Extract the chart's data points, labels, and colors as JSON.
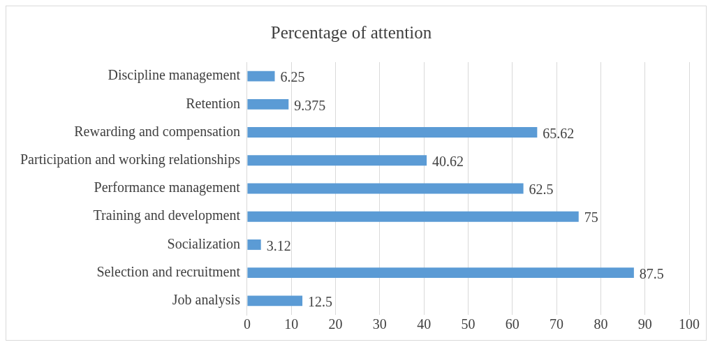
{
  "chart_data": {
    "type": "bar",
    "orientation": "horizontal",
    "title": "Percentage of attention",
    "categories": [
      "Discipline management",
      "Retention",
      "Rewarding and compensation",
      "Participation and working relationships",
      "Performance management",
      "Training and development",
      "Socialization",
      "Selection and recruitment",
      "Job analysis"
    ],
    "values": [
      6.25,
      9.375,
      65.62,
      40.62,
      62.5,
      75,
      3.12,
      87.5,
      12.5
    ],
    "color": "#5b9bd5",
    "xlim": [
      0,
      100
    ],
    "xticks": [
      0,
      10,
      20,
      30,
      40,
      50,
      60,
      70,
      80,
      90,
      100
    ],
    "grid": "x",
    "data_labels": true,
    "legend": false
  }
}
